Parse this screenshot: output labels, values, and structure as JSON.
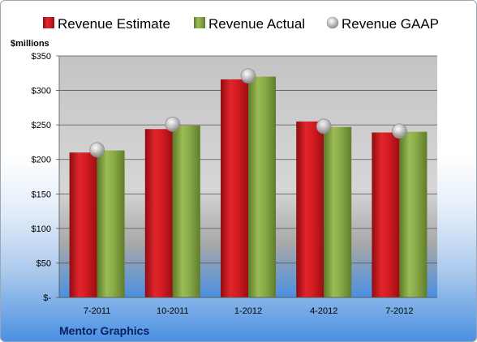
{
  "chart_data": {
    "type": "bar",
    "title": "",
    "unit_label": "$millions",
    "caption": "Mentor Graphics",
    "categories": [
      "7-2011",
      "10-2011",
      "1-2012",
      "4-2012",
      "7-2012"
    ],
    "series": [
      {
        "name": "Revenue Estimate",
        "kind": "bar",
        "color": "#c8161d",
        "values": [
          210,
          244,
          316,
          255,
          239
        ]
      },
      {
        "name": "Revenue Actual",
        "kind": "bar",
        "color": "#7a9a3c",
        "values": [
          213,
          249,
          320,
          247,
          240
        ]
      },
      {
        "name": "Revenue GAAP",
        "kind": "marker",
        "color": "#b8b8b8",
        "values": [
          214,
          251,
          321,
          248,
          241
        ]
      }
    ],
    "y_ticks": [
      {
        "value": 0,
        "label": "$-"
      },
      {
        "value": 50,
        "label": "$50"
      },
      {
        "value": 100,
        "label": "$100"
      },
      {
        "value": 150,
        "label": "$150"
      },
      {
        "value": 200,
        "label": "$200"
      },
      {
        "value": 250,
        "label": "$250"
      },
      {
        "value": 300,
        "label": "$300"
      },
      {
        "value": 350,
        "label": "$350"
      }
    ],
    "ylim": [
      0,
      350
    ],
    "grid": true,
    "legend_position": "top"
  }
}
